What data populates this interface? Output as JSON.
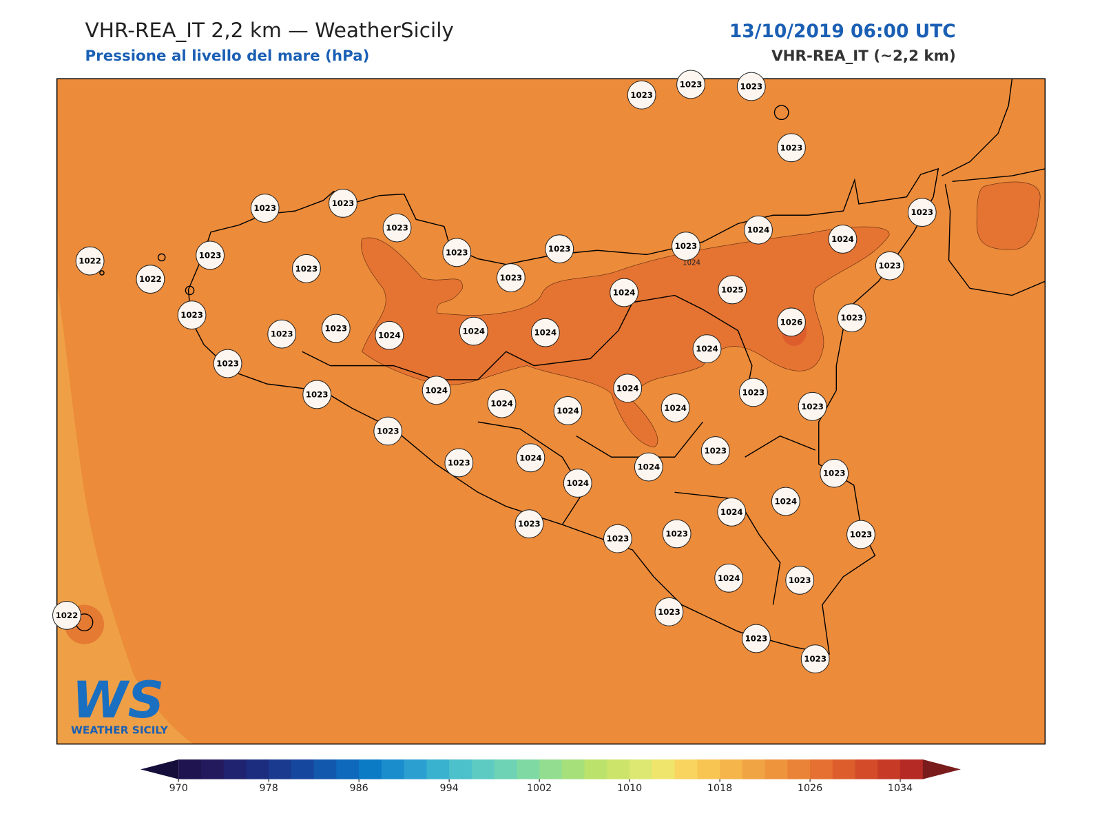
{
  "header": {
    "title": "VHR-REA_IT 2,2 km — WeatherSicily",
    "subtitle": "Pressione al livello del mare (hPa)",
    "date": "13/10/2019 06:00 UTC",
    "model": "VHR-REA_IT (~2,2 km)"
  },
  "stations": [
    1023,
    1023,
    1023,
    1023,
    1023,
    1023,
    1023,
    1023,
    1022,
    1023,
    1023,
    1023,
    1023,
    1024,
    1024,
    1023,
    1022,
    1023,
    1023,
    1024,
    1025,
    1023,
    1023,
    1023,
    1024,
    1024,
    1024,
    1026,
    1023,
    1024,
    1023,
    1023,
    1024,
    1024,
    1023,
    1023,
    1024,
    1024,
    1024,
    1023,
    1023,
    1024,
    1023,
    1024,
    1023,
    1024,
    1024,
    1024,
    1023,
    1023,
    1023,
    1023,
    1024,
    1023,
    1023,
    1023,
    1023,
    1022
  ],
  "contour_label": "1024",
  "logo": {
    "mark": "WS",
    "name": "WEATHER SICILY"
  },
  "colorbar": {
    "range": [
      970,
      1036
    ],
    "ticks": [
      970,
      978,
      986,
      994,
      1002,
      1010,
      1018,
      1026,
      1034
    ],
    "under": "#150d3a",
    "over": "#7a1c1c",
    "colors": [
      "#1f1450",
      "#231a5e",
      "#1f2370",
      "#1c2d80",
      "#1a3a8f",
      "#16479e",
      "#1258ad",
      "#0e68bb",
      "#0c7bc6",
      "#1a8dcc",
      "#2a9fd0",
      "#39b2d0",
      "#4cc0cb",
      "#5ecbc2",
      "#6dd3b4",
      "#7fd9a3",
      "#92dd8f",
      "#a6e07b",
      "#bbe36b",
      "#cde46a",
      "#dde872",
      "#f0e56c",
      "#f9d45f",
      "#f8c553",
      "#f5b54a",
      "#f1a443",
      "#ee943d",
      "#ea8337",
      "#e57031",
      "#dd5e2c",
      "#d34b28",
      "#c63a26",
      "#b52a25"
    ]
  }
}
